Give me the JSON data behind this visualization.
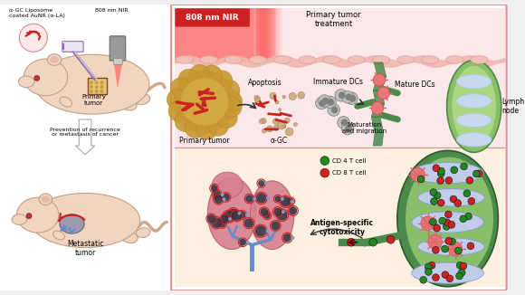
{
  "bg_color": "#f0f0f0",
  "labels": {
    "alpha_gc_liposome": "α-GC Liposome\ncoated AuNR (α-LA)",
    "808nm_nir_left": "808 nm NIR",
    "primary_tumor_left": "Primary\ntumor",
    "arrow_text": "Prevention of recurrence\nor metastasis of cancer",
    "metastatic_tumor": "Metastatic\ntumor",
    "808nm_nir_right": "808 nm NIR",
    "primary_tumor_treatment": "Primary tumor\ntreatment",
    "primary_tumor_right": "Primary tumor",
    "apoptosis": "Apoptosis",
    "alpha_gc": "α-GC",
    "immature_dcs": "Immature DCs",
    "mature_dcs": "Mature DCs",
    "maturation_migration": "Maturation\nand migration",
    "lymph_node": "Lymph\nnode",
    "cd4_tcell": "CD 4 T cell",
    "cd8_tcell": "CD 8 T cell",
    "antigen_specific": "Antigen-specific\ncytotoxicity"
  },
  "colors": {
    "mouse_body": "#f2d5c0",
    "tumor_yellow": "#d4a843",
    "tumor_red": "#cc2222",
    "syringe_purple": "#9966bb",
    "skin_pink": "#f0b8b0",
    "cell_tan": "#c8a870",
    "dc_gray": "#999999",
    "vessel_green_dark": "#4a8a4a",
    "vessel_green_light": "#8abf6a",
    "lymph_blue": "#aac8e0",
    "lymph_inner": "#c8d8ee",
    "cd4_green": "#228822",
    "cd8_red": "#cc2222",
    "lung_pink": "#d08088",
    "lung_light": "#e8a0a8",
    "bronchi_blue": "#6688cc",
    "right_top_bg": "#fce8e8",
    "right_bot_bg": "#fdf0e0",
    "border_red": "#e09090"
  }
}
